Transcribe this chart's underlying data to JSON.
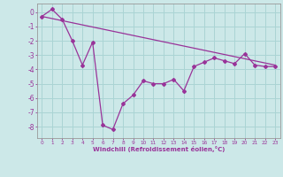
{
  "background_color": "#cce8e8",
  "grid_color": "#aad4d4",
  "line_color": "#993399",
  "title": "",
  "xlabel": "Windchill (Refroidissement éolien,°C)",
  "ylabel": "",
  "xlim": [
    -0.5,
    23.5
  ],
  "ylim": [
    -8.8,
    0.6
  ],
  "yticks": [
    0,
    -1,
    -2,
    -3,
    -4,
    -5,
    -6,
    -7,
    -8
  ],
  "xticks": [
    0,
    1,
    2,
    3,
    4,
    5,
    6,
    7,
    8,
    9,
    10,
    11,
    12,
    13,
    14,
    15,
    16,
    17,
    18,
    19,
    20,
    21,
    22,
    23
  ],
  "line1_x": [
    0,
    23
  ],
  "line1_y": [
    -0.3,
    -3.7
  ],
  "line2_x": [
    0,
    1,
    2,
    3,
    4,
    5,
    6,
    7,
    8,
    9,
    10,
    11,
    12,
    13,
    14,
    15,
    16,
    17,
    18,
    19,
    20,
    21,
    22,
    23
  ],
  "line2_y": [
    -0.3,
    0.2,
    -0.5,
    -2.0,
    -3.7,
    -2.1,
    -7.9,
    -8.2,
    -6.4,
    -5.8,
    -4.8,
    -5.0,
    -5.0,
    -4.7,
    -5.5,
    -3.8,
    -3.5,
    -3.2,
    -3.4,
    -3.6,
    -2.9,
    -3.7,
    -3.8,
    -3.8
  ],
  "figsize": [
    3.2,
    2.0
  ],
  "dpi": 100
}
